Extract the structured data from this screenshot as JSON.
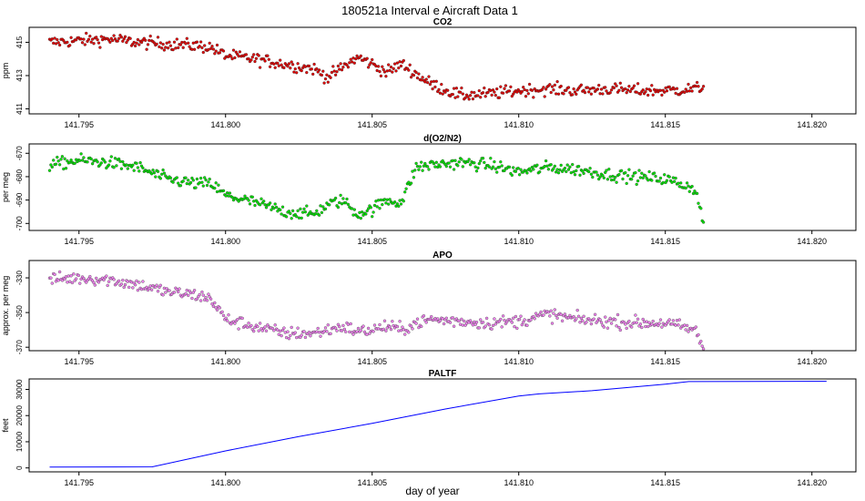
{
  "chart_data": {
    "type": "scatter",
    "title": "180521a   Interval e Aircraft Data 1",
    "xlabel": "day of year",
    "x_ticks": [
      "141.795",
      "141.800",
      "141.805",
      "141.810",
      "141.815",
      "141.820"
    ],
    "x_tick_values": [
      141.795,
      141.8,
      141.805,
      141.81,
      141.815,
      141.82
    ],
    "xlim": [
      141.7933,
      141.8215
    ],
    "panels": [
      {
        "name": "CO2",
        "title": "CO2",
        "ylabel": "ppm",
        "type": "scatter",
        "color": "#e00000",
        "ylim": [
          410.7,
          415.9
        ],
        "y_ticks": [
          "411",
          "413",
          "415"
        ],
        "y_tick_values": [
          411,
          413,
          415
        ],
        "x": [
          141.794,
          141.795,
          141.796,
          141.797,
          141.798,
          141.799,
          141.7995,
          141.8,
          141.801,
          141.802,
          141.803,
          141.8035,
          141.804,
          141.8045,
          141.805,
          141.8055,
          141.806,
          141.8065,
          141.807,
          141.808,
          141.809,
          141.81,
          141.811,
          141.812,
          141.813,
          141.814,
          141.815,
          141.816,
          141.8163
        ],
        "y": [
          415.0,
          415.1,
          415.2,
          415.0,
          414.9,
          414.8,
          414.7,
          414.2,
          414.0,
          413.7,
          413.4,
          412.9,
          413.5,
          414.1,
          413.7,
          413.2,
          413.7,
          413.1,
          412.5,
          411.8,
          411.9,
          412.1,
          412.2,
          412.1,
          412.2,
          412.1,
          412.1,
          412.2,
          412.3
        ]
      },
      {
        "name": "d(O2/N2)",
        "title": "d(O2/N2)",
        "ylabel": "per meg",
        "type": "scatter",
        "color": "#00e000",
        "ylim": [
          -703,
          -666
        ],
        "y_ticks": [
          "-700",
          "-690",
          "-680",
          "-670"
        ],
        "y_tick_values": [
          -700,
          -690,
          -680,
          -670
        ],
        "x": [
          141.794,
          141.795,
          141.796,
          141.797,
          141.798,
          141.799,
          141.7995,
          141.8,
          141.801,
          141.802,
          141.803,
          141.8035,
          141.804,
          141.8045,
          141.805,
          141.8055,
          141.806,
          141.8065,
          141.807,
          141.808,
          141.809,
          141.81,
          141.811,
          141.812,
          141.813,
          141.814,
          141.815,
          141.816,
          141.8163
        ],
        "y": [
          -675,
          -673,
          -674,
          -676,
          -681,
          -683,
          -683,
          -688,
          -691,
          -695,
          -696,
          -692,
          -690,
          -696,
          -694,
          -690,
          -691,
          -676,
          -675,
          -674,
          -675,
          -678,
          -676,
          -677,
          -679,
          -680,
          -681,
          -685,
          -699
        ]
      },
      {
        "name": "APO",
        "title": "APO",
        "ylabel": "approx. per meg",
        "type": "scatter",
        "color": "#ee82ee",
        "ylim": [
          -372,
          -320
        ],
        "y_ticks": [
          "-370",
          "-350",
          "-330"
        ],
        "y_tick_values": [
          -370,
          -350,
          -330
        ],
        "x": [
          141.794,
          141.795,
          141.796,
          141.797,
          141.798,
          141.799,
          141.7995,
          141.8,
          141.801,
          141.802,
          141.803,
          141.8035,
          141.804,
          141.8045,
          141.805,
          141.8055,
          141.806,
          141.8065,
          141.807,
          141.808,
          141.809,
          141.81,
          141.811,
          141.812,
          141.813,
          141.814,
          141.815,
          141.816,
          141.8163
        ],
        "y": [
          -331,
          -330,
          -331,
          -334,
          -338,
          -340,
          -342,
          -354,
          -358,
          -362,
          -362,
          -360,
          -358,
          -361,
          -360,
          -358,
          -360,
          -356,
          -354,
          -355,
          -356,
          -355,
          -351,
          -354,
          -355,
          -356,
          -356,
          -360,
          -370
        ]
      },
      {
        "name": "PALTF",
        "title": "PALTF",
        "ylabel": "feet",
        "type": "line",
        "color": "#0000ff",
        "ylim": [
          -1500,
          34000
        ],
        "y_ticks": [
          "0",
          "10000",
          "20000",
          "30000"
        ],
        "y_tick_values": [
          0,
          10000,
          20000,
          30000
        ],
        "x": [
          141.794,
          141.7975,
          141.8,
          141.8025,
          141.805,
          141.8075,
          141.81,
          141.8107,
          141.8125,
          141.815,
          141.8158,
          141.8205
        ],
        "y": [
          300,
          400,
          6500,
          12000,
          17000,
          22500,
          27500,
          28300,
          29500,
          32000,
          33000,
          33100
        ]
      }
    ]
  }
}
